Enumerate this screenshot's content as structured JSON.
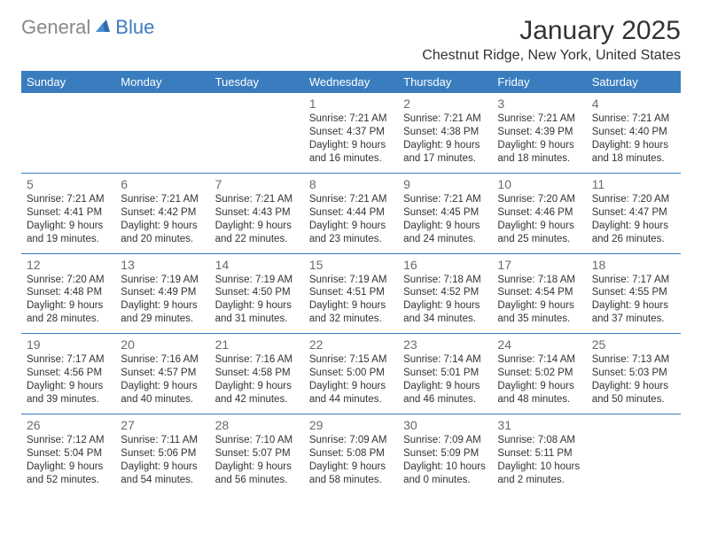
{
  "logo": {
    "text1": "General",
    "text2": "Blue"
  },
  "title": "January 2025",
  "location": "Chestnut Ridge, New York, United States",
  "header_bg": "#3a7dbf",
  "header_fg": "#ffffff",
  "day_num_color": "#6a6a6a",
  "text_color": "#333333",
  "border_color": "#3a7dbf",
  "weekdays": [
    "Sunday",
    "Monday",
    "Tuesday",
    "Wednesday",
    "Thursday",
    "Friday",
    "Saturday"
  ],
  "weeks": [
    [
      null,
      null,
      null,
      {
        "n": "1",
        "sr": "7:21 AM",
        "ss": "4:37 PM",
        "dl": "9 hours and 16 minutes."
      },
      {
        "n": "2",
        "sr": "7:21 AM",
        "ss": "4:38 PM",
        "dl": "9 hours and 17 minutes."
      },
      {
        "n": "3",
        "sr": "7:21 AM",
        "ss": "4:39 PM",
        "dl": "9 hours and 18 minutes."
      },
      {
        "n": "4",
        "sr": "7:21 AM",
        "ss": "4:40 PM",
        "dl": "9 hours and 18 minutes."
      }
    ],
    [
      {
        "n": "5",
        "sr": "7:21 AM",
        "ss": "4:41 PM",
        "dl": "9 hours and 19 minutes."
      },
      {
        "n": "6",
        "sr": "7:21 AM",
        "ss": "4:42 PM",
        "dl": "9 hours and 20 minutes."
      },
      {
        "n": "7",
        "sr": "7:21 AM",
        "ss": "4:43 PM",
        "dl": "9 hours and 22 minutes."
      },
      {
        "n": "8",
        "sr": "7:21 AM",
        "ss": "4:44 PM",
        "dl": "9 hours and 23 minutes."
      },
      {
        "n": "9",
        "sr": "7:21 AM",
        "ss": "4:45 PM",
        "dl": "9 hours and 24 minutes."
      },
      {
        "n": "10",
        "sr": "7:20 AM",
        "ss": "4:46 PM",
        "dl": "9 hours and 25 minutes."
      },
      {
        "n": "11",
        "sr": "7:20 AM",
        "ss": "4:47 PM",
        "dl": "9 hours and 26 minutes."
      }
    ],
    [
      {
        "n": "12",
        "sr": "7:20 AM",
        "ss": "4:48 PM",
        "dl": "9 hours and 28 minutes."
      },
      {
        "n": "13",
        "sr": "7:19 AM",
        "ss": "4:49 PM",
        "dl": "9 hours and 29 minutes."
      },
      {
        "n": "14",
        "sr": "7:19 AM",
        "ss": "4:50 PM",
        "dl": "9 hours and 31 minutes."
      },
      {
        "n": "15",
        "sr": "7:19 AM",
        "ss": "4:51 PM",
        "dl": "9 hours and 32 minutes."
      },
      {
        "n": "16",
        "sr": "7:18 AM",
        "ss": "4:52 PM",
        "dl": "9 hours and 34 minutes."
      },
      {
        "n": "17",
        "sr": "7:18 AM",
        "ss": "4:54 PM",
        "dl": "9 hours and 35 minutes."
      },
      {
        "n": "18",
        "sr": "7:17 AM",
        "ss": "4:55 PM",
        "dl": "9 hours and 37 minutes."
      }
    ],
    [
      {
        "n": "19",
        "sr": "7:17 AM",
        "ss": "4:56 PM",
        "dl": "9 hours and 39 minutes."
      },
      {
        "n": "20",
        "sr": "7:16 AM",
        "ss": "4:57 PM",
        "dl": "9 hours and 40 minutes."
      },
      {
        "n": "21",
        "sr": "7:16 AM",
        "ss": "4:58 PM",
        "dl": "9 hours and 42 minutes."
      },
      {
        "n": "22",
        "sr": "7:15 AM",
        "ss": "5:00 PM",
        "dl": "9 hours and 44 minutes."
      },
      {
        "n": "23",
        "sr": "7:14 AM",
        "ss": "5:01 PM",
        "dl": "9 hours and 46 minutes."
      },
      {
        "n": "24",
        "sr": "7:14 AM",
        "ss": "5:02 PM",
        "dl": "9 hours and 48 minutes."
      },
      {
        "n": "25",
        "sr": "7:13 AM",
        "ss": "5:03 PM",
        "dl": "9 hours and 50 minutes."
      }
    ],
    [
      {
        "n": "26",
        "sr": "7:12 AM",
        "ss": "5:04 PM",
        "dl": "9 hours and 52 minutes."
      },
      {
        "n": "27",
        "sr": "7:11 AM",
        "ss": "5:06 PM",
        "dl": "9 hours and 54 minutes."
      },
      {
        "n": "28",
        "sr": "7:10 AM",
        "ss": "5:07 PM",
        "dl": "9 hours and 56 minutes."
      },
      {
        "n": "29",
        "sr": "7:09 AM",
        "ss": "5:08 PM",
        "dl": "9 hours and 58 minutes."
      },
      {
        "n": "30",
        "sr": "7:09 AM",
        "ss": "5:09 PM",
        "dl": "10 hours and 0 minutes."
      },
      {
        "n": "31",
        "sr": "7:08 AM",
        "ss": "5:11 PM",
        "dl": "10 hours and 2 minutes."
      },
      null
    ]
  ],
  "labels": {
    "sunrise": "Sunrise: ",
    "sunset": "Sunset: ",
    "daylight": "Daylight: "
  }
}
